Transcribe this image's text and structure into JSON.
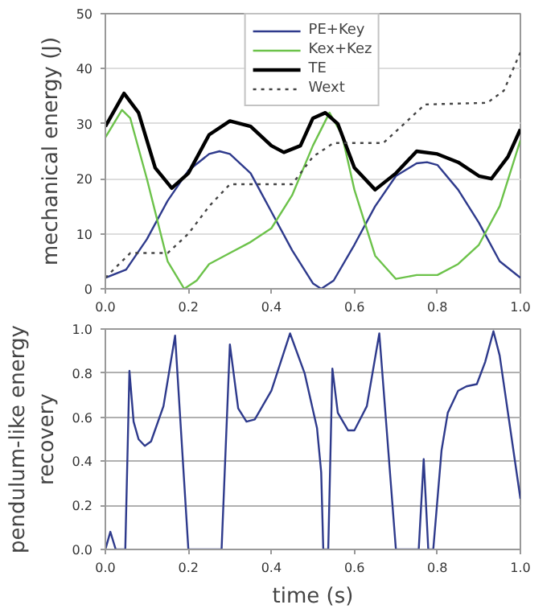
{
  "chart_data": [
    {
      "type": "line",
      "ylabel": "mechanical energy (J)",
      "xlim": [
        0,
        1
      ],
      "ylim": [
        0,
        50
      ],
      "xticks": [
        {
          "value": 0,
          "label": "0.0"
        },
        {
          "value": 0.2,
          "label": "0.2"
        },
        {
          "value": 0.4,
          "label": "0.4"
        },
        {
          "value": 0.6,
          "label": "0.6"
        },
        {
          "value": 0.8,
          "label": "0.8"
        },
        {
          "value": 1,
          "label": "1.0"
        }
      ],
      "yticks": [
        0,
        10,
        20,
        30,
        40,
        50
      ],
      "grid": "y",
      "legend": "top",
      "marker": "none",
      "series": [
        {
          "name": "PE+Key",
          "color": "#2e3a8c",
          "line_style": "solid",
          "x": [
            0,
            0.05,
            0.1,
            0.15,
            0.2,
            0.25,
            0.275,
            0.3,
            0.35,
            0.4,
            0.45,
            0.5,
            0.52,
            0.55,
            0.6,
            0.65,
            0.7,
            0.75,
            0.775,
            0.8,
            0.85,
            0.9,
            0.95,
            1.0
          ],
          "values": [
            2,
            3.5,
            9,
            16,
            21.5,
            24.5,
            25,
            24.5,
            21,
            14,
            7,
            1,
            0,
            1.5,
            8,
            15,
            20.5,
            22.8,
            23,
            22.5,
            18,
            12,
            5,
            2
          ]
        },
        {
          "name": "Kex+Kez",
          "color": "#6cc24a",
          "line_style": "solid",
          "x": [
            0,
            0.04,
            0.06,
            0.1,
            0.15,
            0.19,
            0.22,
            0.25,
            0.3,
            0.35,
            0.4,
            0.45,
            0.5,
            0.54,
            0.57,
            0.6,
            0.65,
            0.7,
            0.75,
            0.8,
            0.85,
            0.9,
            0.95,
            1.0
          ],
          "values": [
            27.5,
            32.5,
            31,
            20,
            5,
            0,
            1.5,
            4.5,
            6.5,
            8.5,
            11,
            17,
            26,
            32,
            28,
            18,
            6,
            1.8,
            2.5,
            2.5,
            4.5,
            8,
            15,
            27
          ]
        },
        {
          "name": "TE",
          "color": "#000000",
          "line_style": "solid",
          "x": [
            0,
            0.045,
            0.08,
            0.12,
            0.16,
            0.2,
            0.25,
            0.3,
            0.35,
            0.4,
            0.43,
            0.47,
            0.5,
            0.53,
            0.56,
            0.6,
            0.65,
            0.7,
            0.75,
            0.8,
            0.85,
            0.9,
            0.93,
            0.97,
            1.0
          ],
          "values": [
            29.5,
            35.5,
            32,
            22,
            18.3,
            21,
            28,
            30.5,
            29.5,
            26,
            24.8,
            26,
            31,
            32,
            30,
            22,
            18,
            21,
            25,
            24.5,
            23,
            20.5,
            20,
            24,
            29
          ]
        },
        {
          "name": "Wext",
          "color": "#444444",
          "line_style": "dotted",
          "x": [
            0,
            0.04,
            0.06,
            0.15,
            0.2,
            0.25,
            0.3,
            0.45,
            0.5,
            0.55,
            0.67,
            0.72,
            0.77,
            0.92,
            0.96,
            1.0
          ],
          "values": [
            2,
            5,
            6.5,
            6.5,
            10,
            15,
            19,
            19,
            24,
            26.5,
            26.5,
            30,
            33.5,
            33.8,
            36,
            43
          ]
        }
      ]
    },
    {
      "type": "line",
      "xlabel": "time (s)",
      "ylabel": "pendulum-like energy recovery",
      "xlim": [
        0,
        1
      ],
      "ylim": [
        0,
        1
      ],
      "xticks": [
        {
          "value": 0,
          "label": "0.0"
        },
        {
          "value": 0.2,
          "label": "0.2"
        },
        {
          "value": 0.4,
          "label": "0.4"
        },
        {
          "value": 0.6,
          "label": "0.6"
        },
        {
          "value": 0.8,
          "label": "0.8"
        },
        {
          "value": 1,
          "label": "1.0"
        }
      ],
      "yticks": [
        {
          "value": 0,
          "label": "0.0"
        },
        {
          "value": 0.2,
          "label": "0.2"
        },
        {
          "value": 0.4,
          "label": "0.4"
        },
        {
          "value": 0.6,
          "label": "0.6"
        },
        {
          "value": 0.8,
          "label": "0.8"
        },
        {
          "value": 1,
          "label": "1.0"
        }
      ],
      "grid": "y",
      "marker": "none",
      "series": [
        {
          "color": "#2e3a8c",
          "line_style": "solid",
          "x": [
            0,
            0.012,
            0.025,
            0.048,
            0.058,
            0.068,
            0.08,
            0.095,
            0.11,
            0.14,
            0.168,
            0.2,
            0.28,
            0.3,
            0.32,
            0.34,
            0.36,
            0.4,
            0.445,
            0.48,
            0.51,
            0.52,
            0.525,
            0.537,
            0.547,
            0.56,
            0.585,
            0.6,
            0.63,
            0.66,
            0.7,
            0.755,
            0.767,
            0.778,
            0.79,
            0.81,
            0.825,
            0.85,
            0.87,
            0.895,
            0.915,
            0.935,
            0.95,
            1.0
          ],
          "values": [
            0,
            0.08,
            0,
            0,
            0.81,
            0.58,
            0.5,
            0.47,
            0.49,
            0.65,
            0.97,
            0,
            0,
            0.93,
            0.64,
            0.58,
            0.59,
            0.72,
            0.98,
            0.8,
            0.55,
            0.35,
            0,
            0,
            0.82,
            0.62,
            0.54,
            0.54,
            0.65,
            0.98,
            0,
            0,
            0.41,
            0,
            0,
            0.45,
            0.62,
            0.72,
            0.74,
            0.75,
            0.85,
            0.99,
            0.88,
            0.23
          ]
        }
      ]
    }
  ]
}
